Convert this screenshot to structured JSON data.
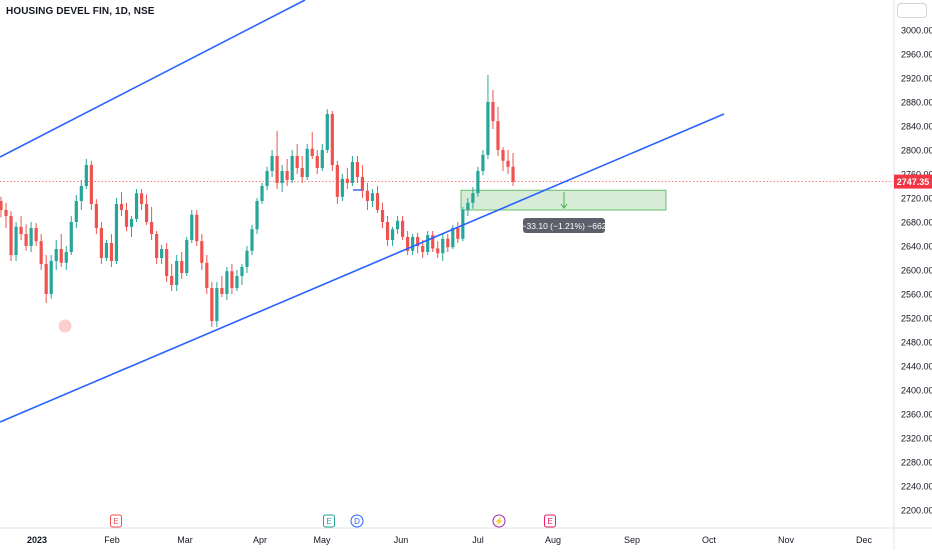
{
  "header": {
    "title": "HOUSING DEVEL FIN, 1D, NSE"
  },
  "chart_data": {
    "type": "candlestick",
    "symbol": "HOUSING DEVEL FIN",
    "interval": "1D",
    "exchange": "NSE",
    "ylim": [
      2190,
      3015
    ],
    "y_ticks": [
      2200,
      2240,
      2280,
      2320,
      2360,
      2400,
      2440,
      2480,
      2520,
      2560,
      2600,
      2640,
      2680,
      2720,
      2760,
      2800,
      2840,
      2880,
      2920,
      2960,
      3000
    ],
    "x_ticks": [
      "2023",
      "Feb",
      "Mar",
      "Apr",
      "May",
      "Jun",
      "Jul",
      "Aug",
      "Sep",
      "Oct",
      "Nov",
      "Dec"
    ],
    "last_price": 2747.35,
    "price_line": 2747.35,
    "colors": {
      "up": "#26a69a",
      "down": "#ef5350",
      "trendline": "#2962ff",
      "measure_fill": "#c8e6c9",
      "measure_border": "#4caf50"
    },
    "candles": [
      [
        2715,
        2722,
        2688,
        2700
      ],
      [
        2700,
        2712,
        2670,
        2690
      ],
      [
        2690,
        2698,
        2615,
        2625
      ],
      [
        2625,
        2680,
        2615,
        2672
      ],
      [
        2672,
        2690,
        2650,
        2660
      ],
      [
        2660,
        2676,
        2632,
        2640
      ],
      [
        2640,
        2680,
        2630,
        2670
      ],
      [
        2670,
        2678,
        2640,
        2648
      ],
      [
        2648,
        2660,
        2600,
        2610
      ],
      [
        2610,
        2625,
        2545,
        2560
      ],
      [
        2560,
        2625,
        2552,
        2615
      ],
      [
        2615,
        2650,
        2600,
        2635
      ],
      [
        2635,
        2660,
        2605,
        2612
      ],
      [
        2612,
        2640,
        2600,
        2630
      ],
      [
        2630,
        2690,
        2625,
        2680
      ],
      [
        2680,
        2725,
        2670,
        2715
      ],
      [
        2715,
        2750,
        2700,
        2740
      ],
      [
        2740,
        2785,
        2735,
        2775
      ],
      [
        2775,
        2782,
        2700,
        2710
      ],
      [
        2710,
        2718,
        2660,
        2670
      ],
      [
        2670,
        2680,
        2610,
        2620
      ],
      [
        2620,
        2650,
        2615,
        2645
      ],
      [
        2645,
        2660,
        2605,
        2615
      ],
      [
        2615,
        2720,
        2610,
        2710
      ],
      [
        2710,
        2730,
        2690,
        2700
      ],
      [
        2700,
        2712,
        2665,
        2672
      ],
      [
        2672,
        2690,
        2655,
        2685
      ],
      [
        2685,
        2735,
        2680,
        2728
      ],
      [
        2728,
        2735,
        2700,
        2710
      ],
      [
        2710,
        2726,
        2675,
        2680
      ],
      [
        2680,
        2705,
        2650,
        2660
      ],
      [
        2660,
        2665,
        2610,
        2620
      ],
      [
        2620,
        2642,
        2610,
        2635
      ],
      [
        2635,
        2645,
        2580,
        2590
      ],
      [
        2590,
        2610,
        2565,
        2575
      ],
      [
        2575,
        2625,
        2565,
        2615
      ],
      [
        2615,
        2630,
        2585,
        2595
      ],
      [
        2595,
        2655,
        2590,
        2650
      ],
      [
        2650,
        2700,
        2645,
        2692
      ],
      [
        2692,
        2700,
        2640,
        2648
      ],
      [
        2648,
        2660,
        2600,
        2612
      ],
      [
        2612,
        2625,
        2560,
        2570
      ],
      [
        2570,
        2580,
        2505,
        2515
      ],
      [
        2515,
        2580,
        2505,
        2570
      ],
      [
        2570,
        2590,
        2555,
        2560
      ],
      [
        2560,
        2605,
        2550,
        2598
      ],
      [
        2598,
        2610,
        2560,
        2570
      ],
      [
        2570,
        2600,
        2565,
        2590
      ],
      [
        2590,
        2610,
        2575,
        2605
      ],
      [
        2605,
        2640,
        2595,
        2632
      ],
      [
        2632,
        2675,
        2625,
        2668
      ],
      [
        2668,
        2720,
        2660,
        2715
      ],
      [
        2715,
        2745,
        2710,
        2740
      ],
      [
        2740,
        2772,
        2733,
        2765
      ],
      [
        2765,
        2800,
        2755,
        2790
      ],
      [
        2790,
        2832,
        2735,
        2745
      ],
      [
        2745,
        2775,
        2730,
        2765
      ],
      [
        2765,
        2785,
        2740,
        2750
      ],
      [
        2750,
        2800,
        2745,
        2790
      ],
      [
        2790,
        2810,
        2760,
        2770
      ],
      [
        2770,
        2790,
        2745,
        2755
      ],
      [
        2755,
        2810,
        2750,
        2802
      ],
      [
        2802,
        2830,
        2785,
        2790
      ],
      [
        2790,
        2800,
        2760,
        2770
      ],
      [
        2770,
        2810,
        2765,
        2800
      ],
      [
        2800,
        2868,
        2795,
        2860
      ],
      [
        2860,
        2865,
        2765,
        2775
      ],
      [
        2775,
        2782,
        2710,
        2722
      ],
      [
        2722,
        2760,
        2715,
        2752
      ],
      [
        2752,
        2770,
        2735,
        2745
      ],
      [
        2745,
        2790,
        2740,
        2780
      ],
      [
        2780,
        2790,
        2745,
        2755
      ],
      [
        2755,
        2775,
        2720,
        2732
      ],
      [
        2732,
        2745,
        2700,
        2715
      ],
      [
        2715,
        2735,
        2705,
        2728
      ],
      [
        2728,
        2740,
        2695,
        2700
      ],
      [
        2700,
        2712,
        2670,
        2680
      ],
      [
        2680,
        2690,
        2640,
        2650
      ],
      [
        2650,
        2672,
        2640,
        2668
      ],
      [
        2668,
        2690,
        2660,
        2682
      ],
      [
        2682,
        2690,
        2650,
        2655
      ],
      [
        2655,
        2665,
        2625,
        2632
      ],
      [
        2632,
        2660,
        2625,
        2655
      ],
      [
        2655,
        2662,
        2628,
        2640
      ],
      [
        2640,
        2650,
        2620,
        2630
      ],
      [
        2630,
        2665,
        2625,
        2658
      ],
      [
        2658,
        2665,
        2630,
        2636
      ],
      [
        2636,
        2648,
        2620,
        2628
      ],
      [
        2628,
        2660,
        2615,
        2652
      ],
      [
        2652,
        2660,
        2630,
        2638
      ],
      [
        2638,
        2675,
        2635,
        2670
      ],
      [
        2670,
        2680,
        2645,
        2652
      ],
      [
        2652,
        2705,
        2648,
        2700
      ],
      [
        2700,
        2720,
        2690,
        2712
      ],
      [
        2712,
        2738,
        2702,
        2728
      ],
      [
        2728,
        2772,
        2722,
        2765
      ],
      [
        2765,
        2800,
        2758,
        2792
      ],
      [
        2792,
        2925,
        2785,
        2880
      ],
      [
        2880,
        2900,
        2835,
        2848
      ],
      [
        2848,
        2872,
        2790,
        2800
      ],
      [
        2800,
        2805,
        2765,
        2782
      ],
      [
        2782,
        2800,
        2760,
        2772
      ],
      [
        2772,
        2795,
        2740,
        2747.35
      ]
    ],
    "trendlines": [
      {
        "name": "upper-channel-line",
        "from": [
          "2022-12-18",
          2755
        ],
        "to": [
          "2023-03-26",
          3055
        ]
      },
      {
        "name": "lower-support-line",
        "from": [
          "2022-12-18",
          2345
        ],
        "to": [
          "2023-09-30",
          2865
        ]
      }
    ],
    "measure": {
      "from_price": 2733,
      "to_price": 2700,
      "label": "−33.10 (−1.21%) −662"
    },
    "event_markers": [
      {
        "letter": "E",
        "date": "Feb",
        "type": "earnings",
        "color": "#ef5350"
      },
      {
        "letter": "E",
        "date": "May",
        "type": "earnings",
        "color": "#26a69a"
      },
      {
        "letter": "D",
        "date": "May",
        "type": "dividend",
        "color": "#2962ff"
      },
      {
        "letter": "⚡",
        "date": "Jul",
        "type": "split",
        "color": "#9c27b0"
      },
      {
        "letter": "E",
        "date": "Aug",
        "type": "earnings",
        "color": "#e91e63"
      }
    ]
  }
}
